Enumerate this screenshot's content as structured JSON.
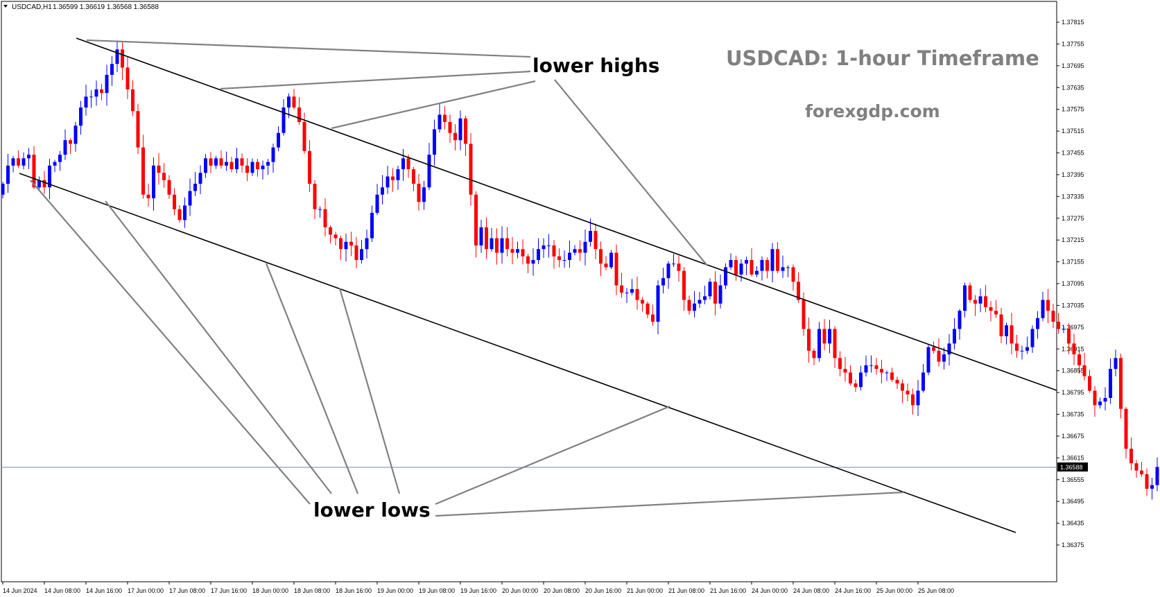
{
  "header": {
    "symbol": "USDCAD,H1",
    "ohlc": "1.36599 1.36619 1.36568 1.36588"
  },
  "watermark": {
    "title": "USDCAD: 1-hour Timeframe",
    "site": "forexgdp.com"
  },
  "annotations": {
    "lower_highs": "lower highs",
    "lower_lows": "lower lows"
  },
  "colors": {
    "bull": "#0000ff",
    "bear": "#ff0000",
    "wick_bull": "#0000ff",
    "wick_bear": "#ff0000",
    "trendline": "#000000",
    "pointer": "#808080",
    "bid_line": "#6f84a8",
    "price_tag_bg": "#000000",
    "price_tag_text": "#ffffff"
  },
  "chart_data": {
    "type": "candlestick",
    "symbol": "USDCAD",
    "timeframe": "H1",
    "current_price": "1.36588",
    "ylim": [
      1.3637,
      1.3784
    ],
    "price_ticks": [
      "1.37815",
      "1.37755",
      "1.37695",
      "1.37635",
      "1.37575",
      "1.37515",
      "1.37455",
      "1.37395",
      "1.37335",
      "1.37275",
      "1.37215",
      "1.37155",
      "1.37095",
      "1.37035",
      "1.36975",
      "1.36915",
      "1.36855",
      "1.36795",
      "1.36735",
      "1.36675",
      "1.36615",
      "1.36555",
      "1.36495",
      "1.36435",
      "1.36375"
    ],
    "time_ticks": [
      "14 Jun 2024",
      "14 Jun 08:00",
      "14 Jun 16:00",
      "17 Jun 00:00",
      "17 Jun 08:00",
      "17 Jun 16:00",
      "18 Jun 00:00",
      "18 Jun 08:00",
      "18 Jun 16:00",
      "19 Jun 00:00",
      "19 Jun 08:00",
      "19 Jun 16:00",
      "20 Jun 00:00",
      "20 Jun 08:00",
      "20 Jun 16:00",
      "21 Jun 00:00",
      "21 Jun 08:00",
      "21 Jun 16:00",
      "24 Jun 00:00",
      "24 Jun 08:00",
      "24 Jun 16:00",
      "25 Jun 00:00",
      "25 Jun 08:00"
    ],
    "bars_per_tick": 8,
    "candles_close": [
      1.3737,
      1.3742,
      1.3744,
      1.3742,
      1.3744,
      1.3745,
      1.3736,
      1.3738,
      1.3736,
      1.3742,
      1.3743,
      1.3745,
      1.3749,
      1.3748,
      1.3753,
      1.3758,
      1.3761,
      1.3761,
      1.3763,
      1.3762,
      1.3767,
      1.377,
      1.3774,
      1.3769,
      1.3763,
      1.3757,
      1.3747,
      1.3734,
      1.3733,
      1.3742,
      1.374,
      1.3738,
      1.3734,
      1.373,
      1.3727,
      1.3731,
      1.3735,
      1.3737,
      1.374,
      1.3744,
      1.3742,
      1.3744,
      1.3742,
      1.3743,
      1.3741,
      1.3744,
      1.3742,
      1.374,
      1.3743,
      1.3741,
      1.3742,
      1.3743,
      1.3747,
      1.3751,
      1.3758,
      1.3761,
      1.3758,
      1.3754,
      1.3746,
      1.3737,
      1.373,
      1.373,
      1.3725,
      1.3723,
      1.3722,
      1.3719,
      1.3721,
      1.372,
      1.3716,
      1.3719,
      1.3722,
      1.3729,
      1.3734,
      1.3736,
      1.3739,
      1.3738,
      1.3741,
      1.3744,
      1.3741,
      1.3737,
      1.3732,
      1.3736,
      1.3745,
      1.3752,
      1.3756,
      1.3754,
      1.3751,
      1.3749,
      1.3755,
      1.3748,
      1.3734,
      1.372,
      1.3725,
      1.3719,
      1.3722,
      1.3718,
      1.3722,
      1.3719,
      1.3718,
      1.3719,
      1.3717,
      1.3715,
      1.3716,
      1.3719,
      1.372,
      1.372,
      1.3717,
      1.3716,
      1.3716,
      1.3718,
      1.3719,
      1.3718,
      1.3721,
      1.3724,
      1.3719,
      1.3715,
      1.3714,
      1.3718,
      1.3709,
      1.3707,
      1.3707,
      1.3708,
      1.3705,
      1.3704,
      1.3701,
      1.3699,
      1.3709,
      1.3711,
      1.3715,
      1.3715,
      1.3713,
      1.3705,
      1.3702,
      1.3704,
      1.3705,
      1.3706,
      1.371,
      1.3704,
      1.3709,
      1.3714,
      1.3716,
      1.3712,
      1.3715,
      1.3716,
      1.3712,
      1.3713,
      1.3716,
      1.3713,
      1.3719,
      1.3713,
      1.3714,
      1.3714,
      1.371,
      1.3705,
      1.3697,
      1.3691,
      1.3689,
      1.3697,
      1.3693,
      1.3697,
      1.3689,
      1.3686,
      1.3685,
      1.3682,
      1.3681,
      1.3685,
      1.3687,
      1.3687,
      1.3686,
      1.3685,
      1.3685,
      1.3683,
      1.3682,
      1.368,
      1.3679,
      1.3676,
      1.368,
      1.3685,
      1.3692,
      1.3691,
      1.3688,
      1.369,
      1.3693,
      1.3697,
      1.3702,
      1.3709,
      1.3705,
      1.3704,
      1.3706,
      1.3703,
      1.3702,
      1.3701,
      1.3695,
      1.3698,
      1.3693,
      1.3691,
      1.3691,
      1.3692,
      1.3697,
      1.37,
      1.3705,
      1.3702,
      1.3699,
      1.3697,
      1.3697,
      1.3693,
      1.369,
      1.3687,
      1.3684,
      1.368,
      1.3676,
      1.3677,
      1.3678,
      1.3686,
      1.3689,
      1.3675,
      1.3664,
      1.366,
      1.3658,
      1.3657,
      1.3653,
      1.3654,
      1.3659,
      1.3658,
      1.3653,
      1.3653,
      1.3655,
      1.3656,
      1.3658,
      1.3657,
      1.3658,
      1.3655,
      1.3654,
      1.3651,
      1.3649,
      1.3642,
      1.3641,
      1.3647,
      1.365,
      1.3648,
      1.365,
      1.3648,
      1.3661,
      1.3659
    ]
  }
}
